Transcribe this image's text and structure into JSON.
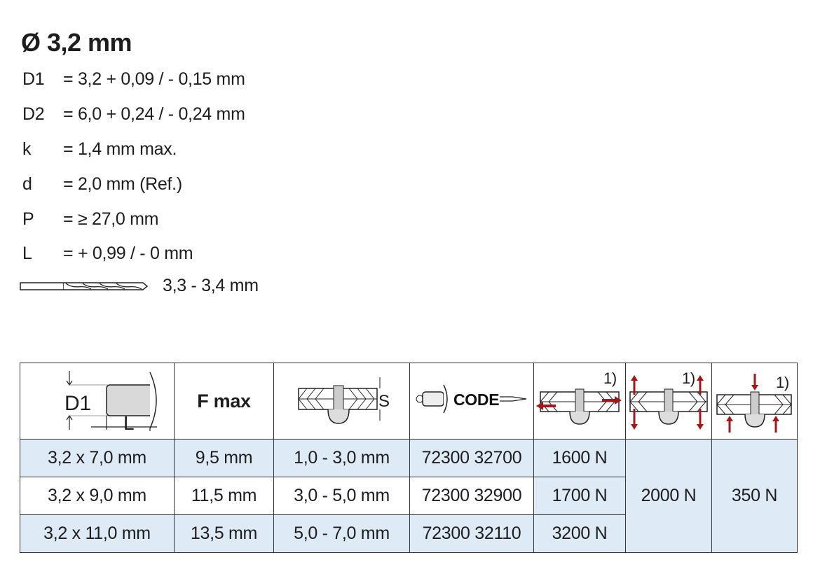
{
  "title": "Ø 3,2 mm",
  "specs": [
    {
      "label": "D1",
      "value": "= 3,2 + 0,09 / - 0,15 mm"
    },
    {
      "label": "D2",
      "value": "= 6,0 + 0,24 / - 0,24 mm"
    },
    {
      "label": "k",
      "value": "= 1,4 mm max."
    },
    {
      "label": "d",
      "value": "= 2,0 mm (Ref.)"
    },
    {
      "label": "P",
      "value": "= ≥ 27,0 mm"
    },
    {
      "label": "L",
      "value": "= + 0,99 / - 0 mm"
    }
  ],
  "drill": {
    "icon": "drill-bit-icon",
    "value": "3,3 - 3,4 mm"
  },
  "table": {
    "header": {
      "col1_icon": "rivet-dimensions-icon",
      "col1_d1": "D1",
      "col1_l": "L",
      "fmax": "F max",
      "grip_icon": "grip-range-icon",
      "grip_s": "S",
      "code_icon": "rivet-code-icon",
      "code": "CODE",
      "shear_icon": "shear-force-icon",
      "tensile_icon": "tensile-force-icon",
      "pull_icon": "head-retention-icon",
      "footnote": "1)"
    },
    "rows": [
      {
        "size": "3,2 x 7,0 mm",
        "fmax": "9,5 mm",
        "grip": "1,0 - 3,0 mm",
        "code": "72300 32700",
        "shear": "1600 N"
      },
      {
        "size": "3,2 x 9,0 mm",
        "fmax": "11,5 mm",
        "grip": "3,0 - 5,0 mm",
        "code": "72300 32900",
        "shear": "1700 N"
      },
      {
        "size": "3,2 x 11,0 mm",
        "fmax": "13,5 mm",
        "grip": "5,0 - 7,0 mm",
        "code": "72300 32110",
        "shear": "3200 N"
      }
    ],
    "tensile": "2000 N",
    "head_retention": "350 N"
  },
  "colors": {
    "row_highlight": "#deeaf6",
    "arrow": "#a01818",
    "border": "#333333"
  }
}
